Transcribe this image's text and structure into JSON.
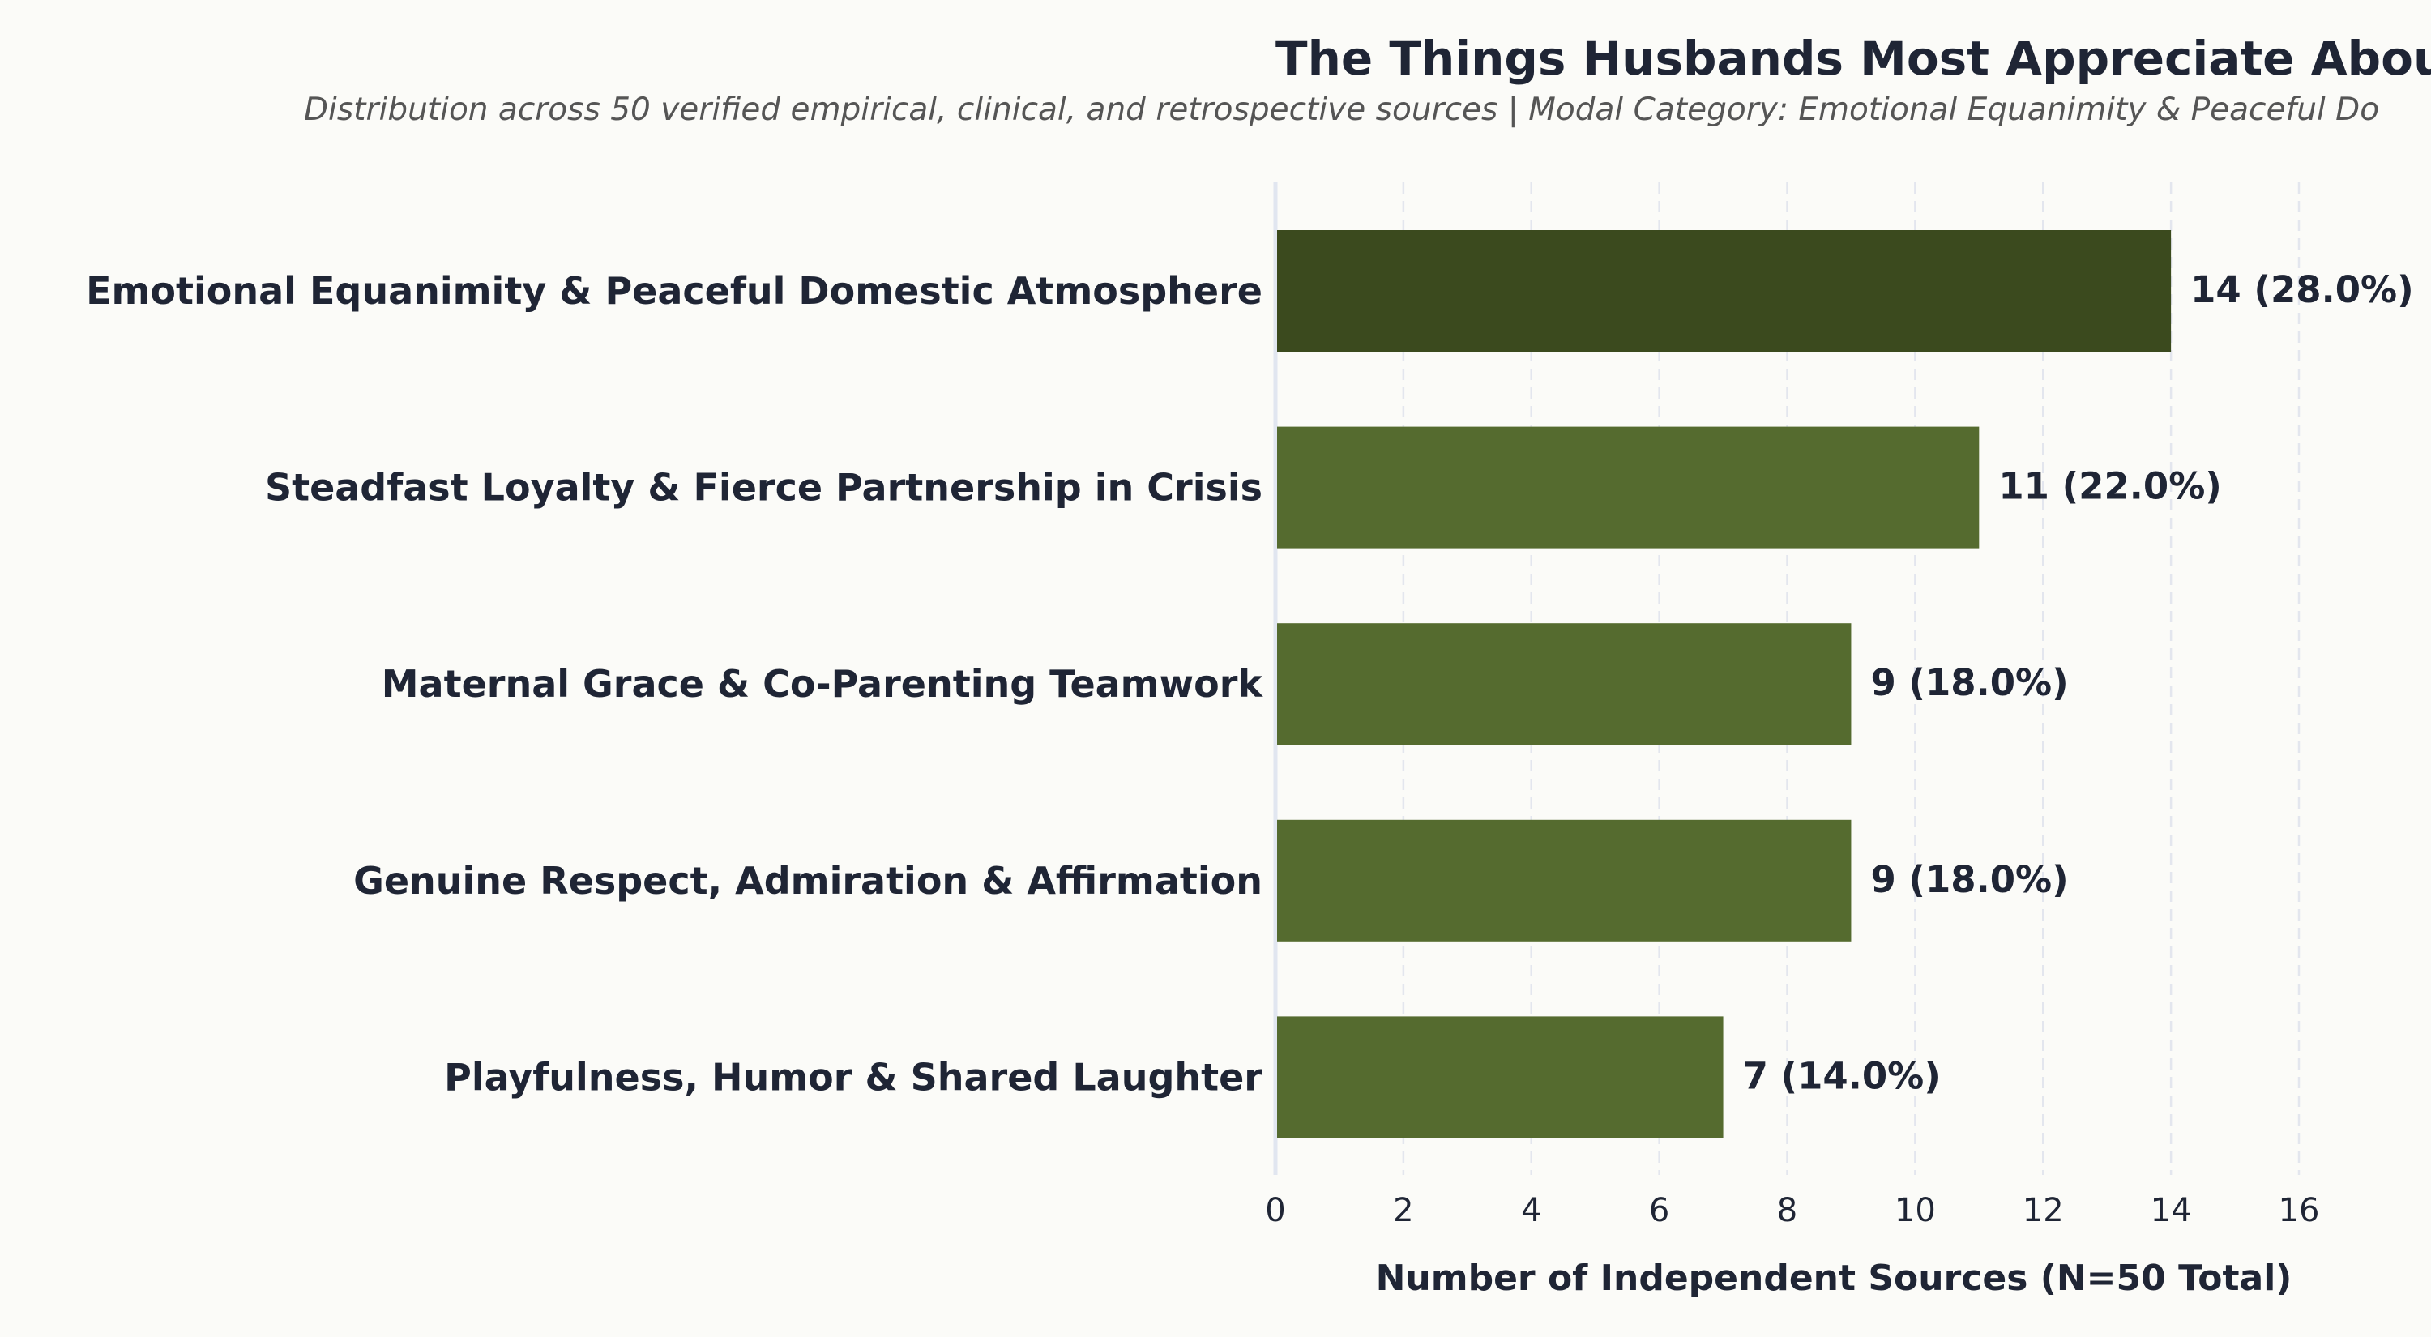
{
  "chart_data": {
    "type": "bar",
    "orientation": "horizontal",
    "title": "The Things Husbands Most Appreciate Abou",
    "subtitle": "Distribution across 50 verified empirical, clinical, and retrospective sources | Modal Category: Emotional Equanimity & Peaceful Do",
    "xlabel": "Number of Independent Sources (N=50 Total)",
    "ylabel": "",
    "xlim": [
      0,
      16
    ],
    "xticks": [
      0,
      2,
      4,
      6,
      8,
      10,
      12,
      14,
      16
    ],
    "grid": "vertical dashed",
    "categories": [
      "Emotional Equanimity & Peaceful Domestic Atmosphere",
      "Steadfast Loyalty & Fierce Partnership in Crisis",
      "Maternal Grace & Co-Parenting Teamwork",
      "Genuine Respect, Admiration & Affirmation",
      "Playfulness, Humor & Shared Laughter"
    ],
    "values": [
      14,
      11,
      9,
      9,
      7
    ],
    "data_labels": [
      "14 (28.0%)",
      "11 (22.0%)",
      "9 (18.0%)",
      "9 (18.0%)",
      "7 (14.0%)"
    ],
    "colors": {
      "highlight": "#3b4a1e",
      "default": "#556b2f"
    },
    "highlight_index": 0
  }
}
